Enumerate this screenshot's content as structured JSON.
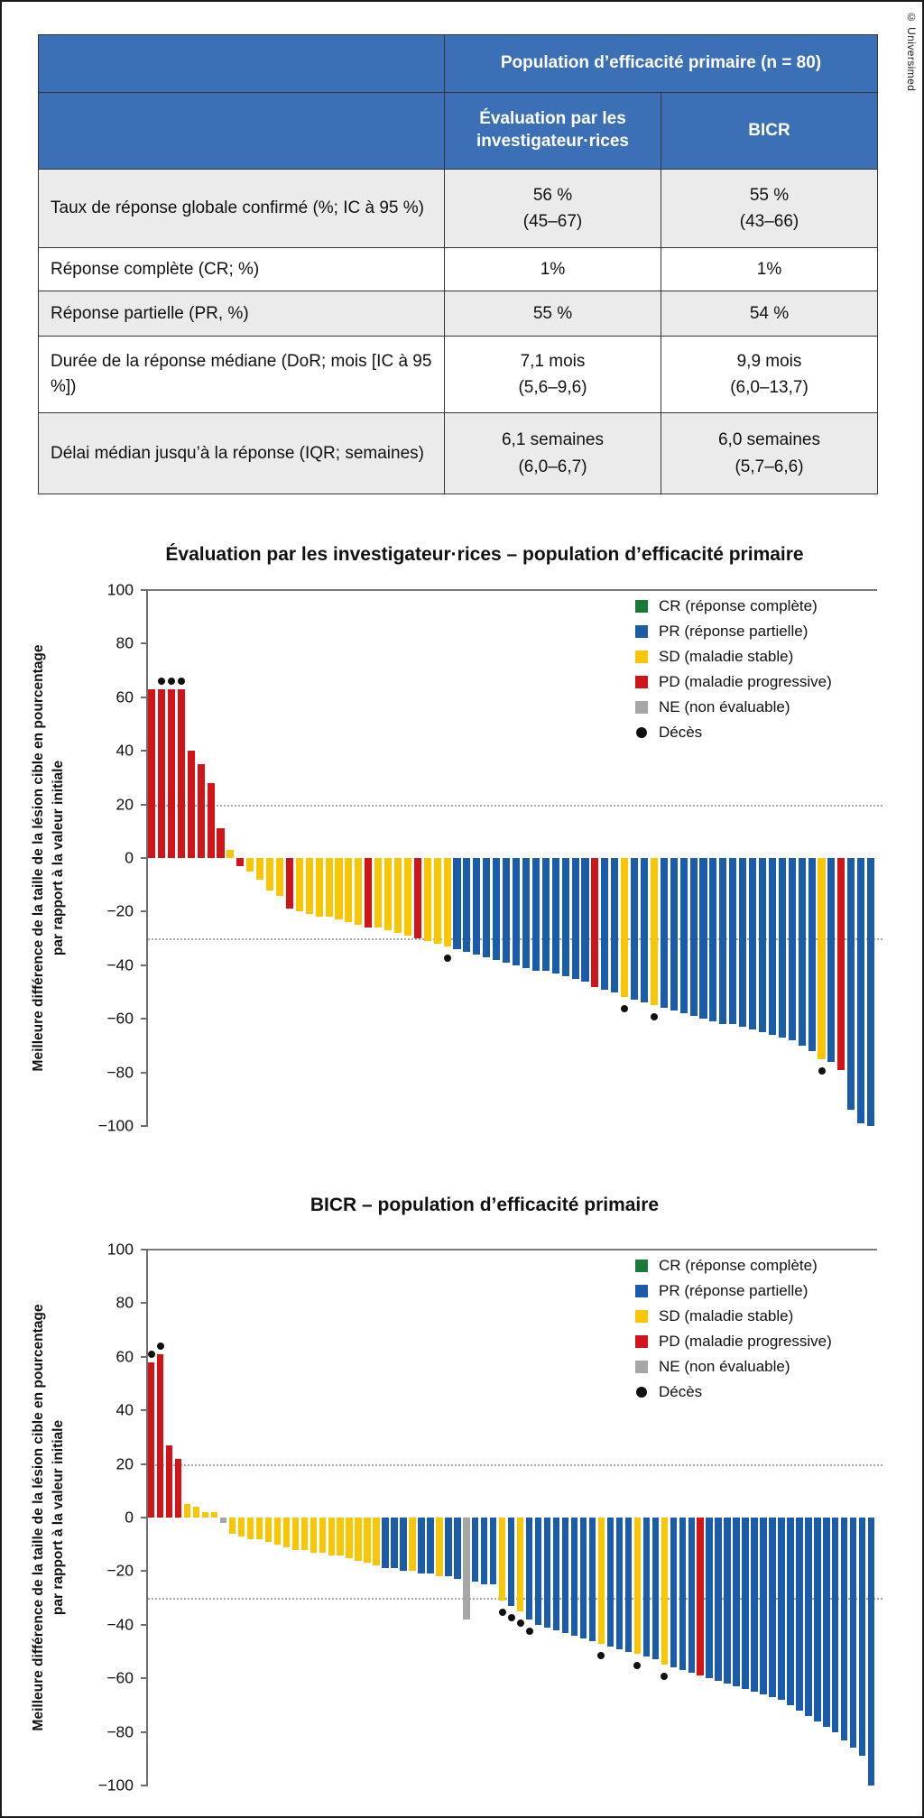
{
  "credit": "© Universimed",
  "table": {
    "span_header": "Population d’efficacité primaire (n = 80)",
    "col_headers": [
      "Évaluation par les investigateur·rices",
      "BICR"
    ],
    "rows": [
      {
        "label": "Taux de réponse globale confirmé (%; IC à 95 %)",
        "inv": [
          "56 %",
          "(45–67)"
        ],
        "bicr": [
          "55 %",
          "(43–66)"
        ]
      },
      {
        "label": "Réponse complète (CR; %)",
        "inv": [
          "1%"
        ],
        "bicr": [
          "1%"
        ]
      },
      {
        "label": "Réponse partielle (PR, %)",
        "inv": [
          "55 %"
        ],
        "bicr": [
          "54 %"
        ]
      },
      {
        "label": "Durée de la réponse médiane (DoR; mois [IC à 95 %])",
        "inv": [
          "7,1 mois",
          "(5,6–9,6)"
        ],
        "bicr": [
          "9,9 mois",
          "(6,0–13,7)"
        ]
      },
      {
        "label": "Délai médian jusqu’à la réponse (IQR; semaines)",
        "inv": [
          "6,1 semaines",
          "(6,0–6,7)"
        ],
        "bicr": [
          "6,0 semaines",
          "(5,7–6,6)"
        ]
      }
    ]
  },
  "colors": {
    "CR": "#1a7a3a",
    "PR": "#1a5ca9",
    "SD": "#f9c606",
    "PD": "#d01419",
    "NE": "#a6a6a6",
    "death": "#101010",
    "header_blue": "#3b70b7",
    "row_gray": "#ebebeb"
  },
  "legend": [
    {
      "key": "CR",
      "label": "CR (réponse complète)"
    },
    {
      "key": "PR",
      "label": "PR (réponse partielle)"
    },
    {
      "key": "SD",
      "label": "SD (maladie stable)"
    },
    {
      "key": "PD",
      "label": "PD (maladie progressive)"
    },
    {
      "key": "NE",
      "label": "NE (non évaluable)"
    },
    {
      "key": "death",
      "label": "Décès"
    }
  ],
  "chart_data": [
    {
      "type": "bar",
      "title": "Évaluation par les investigateur·rices – population d’efficacité primaire",
      "ylabel": [
        "Meilleure différence de la taille de la lésion cible en pourcentage",
        "par rapport à la valeur initiale"
      ],
      "xlabel": "",
      "ylim": [
        -100,
        100
      ],
      "yticks": [
        100,
        80,
        60,
        40,
        20,
        0,
        -20,
        -40,
        -60,
        -80,
        -100
      ],
      "dotted_gridlines": [
        20,
        -30
      ],
      "grid": "dotted-thresholds-only",
      "legend_position": "top-right",
      "bars": [
        [
          63,
          "PD",
          0
        ],
        [
          63,
          "PD",
          1
        ],
        [
          63,
          "PD",
          1
        ],
        [
          63,
          "PD",
          1
        ],
        [
          40,
          "PD",
          0
        ],
        [
          35,
          "PD",
          0
        ],
        [
          28,
          "PD",
          0
        ],
        [
          11,
          "PD",
          0
        ],
        [
          3,
          "SD",
          0
        ],
        [
          -3,
          "PD",
          0
        ],
        [
          -5,
          "SD",
          0
        ],
        [
          -8,
          "SD",
          0
        ],
        [
          -12,
          "SD",
          0
        ],
        [
          -14,
          "SD",
          0
        ],
        [
          -19,
          "PD",
          0
        ],
        [
          -20,
          "SD",
          0
        ],
        [
          -21,
          "SD",
          0
        ],
        [
          -22,
          "SD",
          0
        ],
        [
          -22,
          "SD",
          0
        ],
        [
          -23,
          "SD",
          0
        ],
        [
          -24,
          "SD",
          0
        ],
        [
          -25,
          "SD",
          0
        ],
        [
          -26,
          "PD",
          0
        ],
        [
          -26,
          "SD",
          0
        ],
        [
          -27,
          "SD",
          0
        ],
        [
          -28,
          "SD",
          0
        ],
        [
          -29,
          "SD",
          0
        ],
        [
          -30,
          "PD",
          0
        ],
        [
          -31,
          "SD",
          0
        ],
        [
          -32,
          "SD",
          0
        ],
        [
          -33,
          "SD",
          1
        ],
        [
          -34,
          "PR",
          0
        ],
        [
          -35,
          "PR",
          0
        ],
        [
          -36,
          "PR",
          0
        ],
        [
          -37,
          "PR",
          0
        ],
        [
          -38,
          "PR",
          0
        ],
        [
          -39,
          "PR",
          0
        ],
        [
          -40,
          "PR",
          0
        ],
        [
          -41,
          "PR",
          0
        ],
        [
          -42,
          "PR",
          0
        ],
        [
          -42,
          "PR",
          0
        ],
        [
          -43,
          "PR",
          0
        ],
        [
          -44,
          "PR",
          0
        ],
        [
          -45,
          "PR",
          0
        ],
        [
          -46,
          "PR",
          0
        ],
        [
          -48,
          "PD",
          0
        ],
        [
          -49,
          "PR",
          0
        ],
        [
          -50,
          "PR",
          0
        ],
        [
          -52,
          "SD",
          1
        ],
        [
          -53,
          "PR",
          0
        ],
        [
          -54,
          "PR",
          0
        ],
        [
          -55,
          "SD",
          1
        ],
        [
          -56,
          "PR",
          0
        ],
        [
          -57,
          "PR",
          0
        ],
        [
          -58,
          "PR",
          0
        ],
        [
          -59,
          "PR",
          0
        ],
        [
          -60,
          "PR",
          0
        ],
        [
          -61,
          "PR",
          0
        ],
        [
          -62,
          "PR",
          0
        ],
        [
          -62,
          "PR",
          0
        ],
        [
          -63,
          "PR",
          0
        ],
        [
          -64,
          "PR",
          0
        ],
        [
          -65,
          "PR",
          0
        ],
        [
          -66,
          "PR",
          0
        ],
        [
          -67,
          "PR",
          0
        ],
        [
          -68,
          "PR",
          0
        ],
        [
          -70,
          "PR",
          0
        ],
        [
          -72,
          "PR",
          0
        ],
        [
          -75,
          "SD",
          1
        ],
        [
          -76,
          "PR",
          0
        ],
        [
          -79,
          "PD",
          0
        ],
        [
          -94,
          "PR",
          0
        ],
        [
          -99,
          "PR",
          0
        ],
        [
          -100,
          "PR",
          0
        ]
      ]
    },
    {
      "type": "bar",
      "title": "BICR – population d’efficacité primaire",
      "ylabel": [
        "Meilleure différence de la taille de la lésion cible en pourcentage",
        "par rapport à la valeur initiale"
      ],
      "xlabel": "",
      "ylim": [
        -100,
        100
      ],
      "yticks": [
        100,
        80,
        60,
        40,
        20,
        0,
        -20,
        -40,
        -60,
        -80,
        -100
      ],
      "dotted_gridlines": [
        20,
        -30
      ],
      "grid": "dotted-thresholds-only",
      "legend_position": "top-right",
      "bars": [
        [
          58,
          "PD",
          1
        ],
        [
          61,
          "PD",
          1
        ],
        [
          27,
          "PD",
          0
        ],
        [
          22,
          "PD",
          0
        ],
        [
          5,
          "SD",
          0
        ],
        [
          4,
          "SD",
          0
        ],
        [
          2,
          "SD",
          0
        ],
        [
          2,
          "SD",
          0
        ],
        [
          -2,
          "NE",
          0
        ],
        [
          -6,
          "SD",
          0
        ],
        [
          -7,
          "SD",
          0
        ],
        [
          -8,
          "SD",
          0
        ],
        [
          -8,
          "SD",
          0
        ],
        [
          -9,
          "SD",
          0
        ],
        [
          -10,
          "SD",
          0
        ],
        [
          -11,
          "SD",
          0
        ],
        [
          -12,
          "SD",
          0
        ],
        [
          -12,
          "SD",
          0
        ],
        [
          -13,
          "SD",
          0
        ],
        [
          -13,
          "SD",
          0
        ],
        [
          -14,
          "SD",
          0
        ],
        [
          -14,
          "SD",
          0
        ],
        [
          -15,
          "SD",
          0
        ],
        [
          -16,
          "SD",
          0
        ],
        [
          -17,
          "SD",
          0
        ],
        [
          -18,
          "SD",
          0
        ],
        [
          -19,
          "PR",
          0
        ],
        [
          -19,
          "PR",
          0
        ],
        [
          -20,
          "PR",
          0
        ],
        [
          -20,
          "SD",
          0
        ],
        [
          -21,
          "PR",
          0
        ],
        [
          -21,
          "PR",
          0
        ],
        [
          -22,
          "SD",
          0
        ],
        [
          -22,
          "PR",
          0
        ],
        [
          -23,
          "PR",
          0
        ],
        [
          -38,
          "NE",
          0
        ],
        [
          -24,
          "PR",
          0
        ],
        [
          -25,
          "PR",
          0
        ],
        [
          -25,
          "PR",
          0
        ],
        [
          -31,
          "SD",
          1
        ],
        [
          -33,
          "PR",
          1
        ],
        [
          -35,
          "SD",
          1
        ],
        [
          -38,
          "PR",
          1
        ],
        [
          -40,
          "PR",
          0
        ],
        [
          -41,
          "PR",
          0
        ],
        [
          -42,
          "PR",
          0
        ],
        [
          -43,
          "PR",
          0
        ],
        [
          -44,
          "PR",
          0
        ],
        [
          -45,
          "PR",
          0
        ],
        [
          -46,
          "PR",
          0
        ],
        [
          -47,
          "SD",
          1
        ],
        [
          -48,
          "PR",
          0
        ],
        [
          -49,
          "PR",
          0
        ],
        [
          -50,
          "PR",
          0
        ],
        [
          -51,
          "SD",
          1
        ],
        [
          -52,
          "PR",
          0
        ],
        [
          -53,
          "PR",
          0
        ],
        [
          -55,
          "SD",
          1
        ],
        [
          -56,
          "PR",
          0
        ],
        [
          -57,
          "PR",
          0
        ],
        [
          -58,
          "PR",
          0
        ],
        [
          -59,
          "PD",
          0
        ],
        [
          -60,
          "PR",
          0
        ],
        [
          -61,
          "PR",
          0
        ],
        [
          -62,
          "PR",
          0
        ],
        [
          -63,
          "PR",
          0
        ],
        [
          -64,
          "PR",
          0
        ],
        [
          -65,
          "PR",
          0
        ],
        [
          -66,
          "PR",
          0
        ],
        [
          -67,
          "PR",
          0
        ],
        [
          -68,
          "PR",
          0
        ],
        [
          -70,
          "PR",
          0
        ],
        [
          -72,
          "PR",
          0
        ],
        [
          -74,
          "PR",
          0
        ],
        [
          -76,
          "PR",
          0
        ],
        [
          -78,
          "PR",
          0
        ],
        [
          -80,
          "PR",
          0
        ],
        [
          -83,
          "PR",
          0
        ],
        [
          -86,
          "PR",
          0
        ],
        [
          -89,
          "PR",
          0
        ],
        [
          -100,
          "PR",
          0
        ]
      ]
    }
  ]
}
